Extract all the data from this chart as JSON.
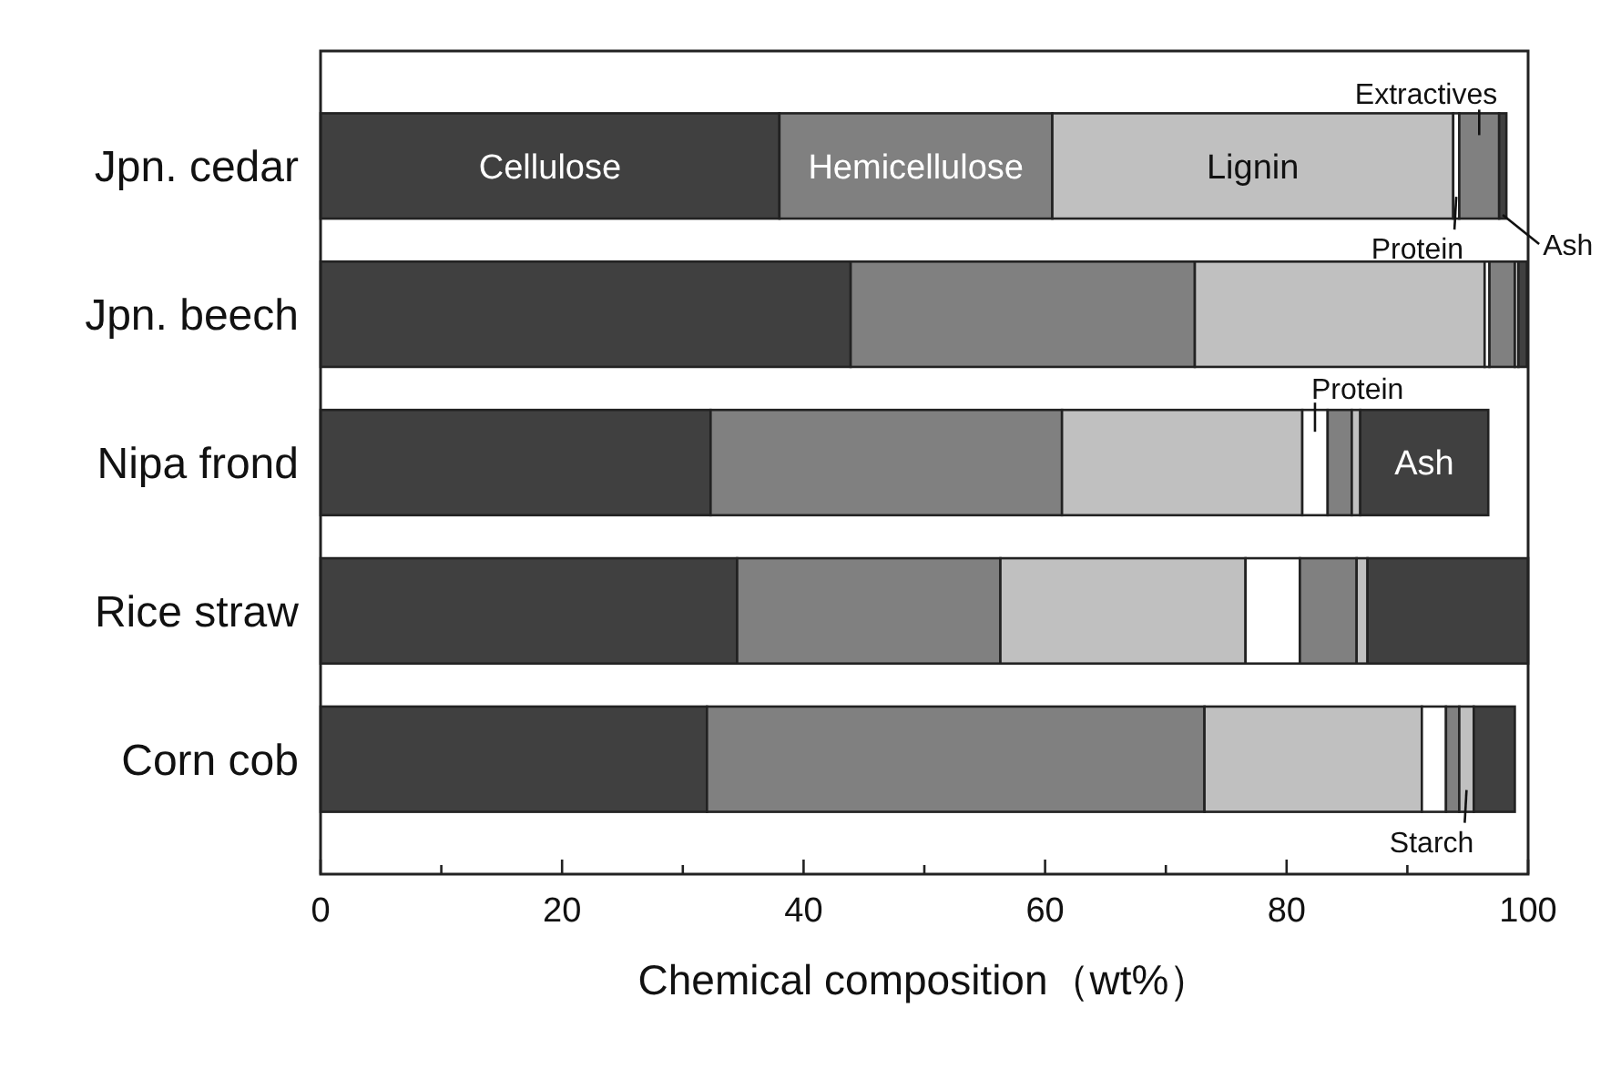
{
  "chart_data": {
    "type": "bar",
    "orientation": "horizontal",
    "stacked": true,
    "xlabel": "Chemical composition（wt%）",
    "categories": [
      "Jpn. cedar",
      "Jpn. beech",
      "Nipa frond",
      "Rice straw",
      "Corn cob"
    ],
    "series": [
      {
        "name": "Cellulose",
        "color": "#404040",
        "values": [
          38.0,
          43.9,
          32.3,
          34.5,
          32.0
        ]
      },
      {
        "name": "Hemicellulose",
        "color": "#808080",
        "values": [
          22.6,
          28.5,
          29.1,
          21.8,
          41.2
        ]
      },
      {
        "name": "Lignin",
        "color": "#c0c0c0",
        "values": [
          33.2,
          24.0,
          19.9,
          20.3,
          18.0
        ]
      },
      {
        "name": "Protein",
        "color": "#ffffff",
        "values": [
          0.5,
          0.4,
          2.1,
          4.5,
          2.0
        ]
      },
      {
        "name": "Extractives",
        "color": "#808080",
        "values": [
          3.3,
          2.1,
          2.0,
          4.7,
          1.1
        ]
      },
      {
        "name": "Starch",
        "color": "#c0c0c0",
        "values": [
          0,
          0.3,
          0.7,
          0.9,
          1.2
        ]
      },
      {
        "name": "Ash",
        "color": "#404040",
        "values": [
          0.6,
          0.7,
          10.6,
          13.3,
          3.4
        ]
      }
    ],
    "xlim": [
      0,
      100
    ],
    "xticks": [
      0,
      {
        "value": 10,
        "label": null
      },
      20,
      {
        "value": 30,
        "label": null
      },
      40,
      {
        "value": 50,
        "label": null
      },
      60,
      {
        "value": 70,
        "label": null
      },
      80,
      {
        "value": 90,
        "label": null
      },
      100
    ]
  }
}
